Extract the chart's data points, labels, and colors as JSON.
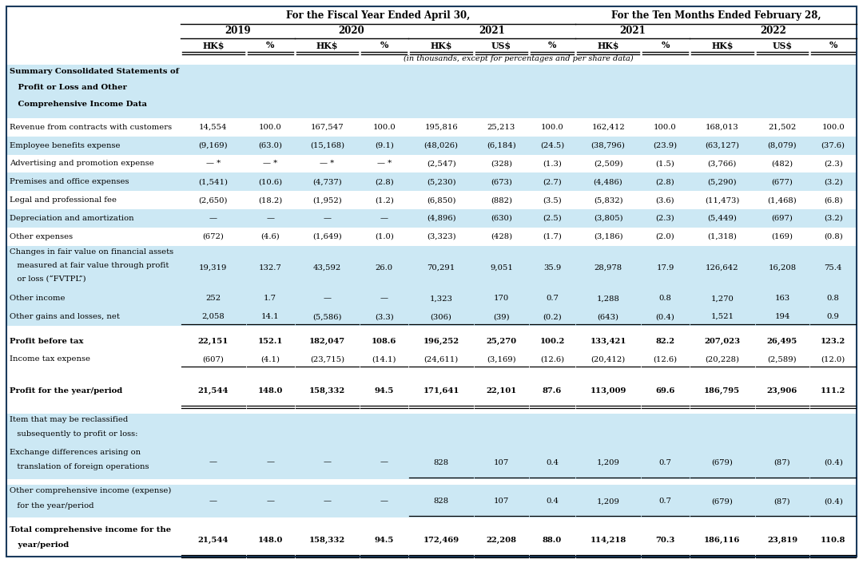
{
  "title_fiscal": "For the Fiscal Year Ended April 30,",
  "title_ten_months": "For the Ten Months Ended February 28,",
  "subtitle": "(in thousands, except for percentages and per share data)",
  "section_header_lines": [
    "Summary Consolidated Statements of",
    "   Profit or Loss and Other",
    "   Comprehensive Income Data"
  ],
  "bg_light": "#cce8f4",
  "bg_white": "#ffffff",
  "border_color": "#1a3a5c",
  "fig_w": 10.8,
  "fig_h": 7.05,
  "dpi": 100,
  "rows": [
    {
      "label_lines": [
        "Revenue from contracts with customers"
      ],
      "data": [
        "14,554",
        "100.0",
        "167,547",
        "100.0",
        "195,816",
        "25,213",
        "100.0",
        "162,412",
        "100.0",
        "168,013",
        "21,502",
        "100.0"
      ],
      "bold": false,
      "underline_single": false,
      "underline_double": false,
      "bg": "white",
      "spacer_before": false
    },
    {
      "label_lines": [
        "Employee benefits expense"
      ],
      "data": [
        "(9,169)",
        "(63.0)",
        "(15,168)",
        "(9.1)",
        "(48,026)",
        "(6,184)",
        "(24.5)",
        "(38,796)",
        "(23.9)",
        "(63,127)",
        "(8,079)",
        "(37.6)"
      ],
      "bold": false,
      "underline_single": false,
      "underline_double": false,
      "bg": "light",
      "spacer_before": false
    },
    {
      "label_lines": [
        "Advertising and promotion expense"
      ],
      "data": [
        "— *",
        "— *",
        "— *",
        "— *",
        "(2,547)",
        "(328)",
        "(1.3)",
        "(2,509)",
        "(1.5)",
        "(3,766)",
        "(482)",
        "(2.3)"
      ],
      "bold": false,
      "underline_single": false,
      "underline_double": false,
      "bg": "white",
      "spacer_before": false
    },
    {
      "label_lines": [
        "Premises and office expenses"
      ],
      "data": [
        "(1,541)",
        "(10.6)",
        "(4,737)",
        "(2.8)",
        "(5,230)",
        "(673)",
        "(2.7)",
        "(4,486)",
        "(2.8)",
        "(5,290)",
        "(677)",
        "(3.2)"
      ],
      "bold": false,
      "underline_single": false,
      "underline_double": false,
      "bg": "light",
      "spacer_before": false
    },
    {
      "label_lines": [
        "Legal and professional fee"
      ],
      "data": [
        "(2,650)",
        "(18.2)",
        "(1,952)",
        "(1.2)",
        "(6,850)",
        "(882)",
        "(3.5)",
        "(5,832)",
        "(3.6)",
        "(11,473)",
        "(1,468)",
        "(6.8)"
      ],
      "bold": false,
      "underline_single": false,
      "underline_double": false,
      "bg": "white",
      "spacer_before": false
    },
    {
      "label_lines": [
        "Depreciation and amortization"
      ],
      "data": [
        "—",
        "—",
        "—",
        "—",
        "(4,896)",
        "(630)",
        "(2.5)",
        "(3,805)",
        "(2.3)",
        "(5,449)",
        "(697)",
        "(3.2)"
      ],
      "bold": false,
      "underline_single": false,
      "underline_double": false,
      "bg": "light",
      "spacer_before": false
    },
    {
      "label_lines": [
        "Other expenses"
      ],
      "data": [
        "(672)",
        "(4.6)",
        "(1,649)",
        "(1.0)",
        "(3,323)",
        "(428)",
        "(1.7)",
        "(3,186)",
        "(2.0)",
        "(1,318)",
        "(169)",
        "(0.8)"
      ],
      "bold": false,
      "underline_single": false,
      "underline_double": false,
      "bg": "white",
      "spacer_before": false
    },
    {
      "label_lines": [
        "Changes in fair value on financial assets",
        "   measured at fair value through profit",
        "   or loss (“FVTPL”)"
      ],
      "data": [
        "19,319",
        "132.7",
        "43,592",
        "26.0",
        "70,291",
        "9,051",
        "35.9",
        "28,978",
        "17.9",
        "126,642",
        "16,208",
        "75.4"
      ],
      "bold": false,
      "underline_single": false,
      "underline_double": false,
      "bg": "light",
      "spacer_before": false
    },
    {
      "label_lines": [
        "Other income"
      ],
      "data": [
        "252",
        "1.7",
        "—",
        "—",
        "1,323",
        "170",
        "0.7",
        "1,288",
        "0.8",
        "1,270",
        "163",
        "0.8"
      ],
      "bold": false,
      "underline_single": false,
      "underline_double": false,
      "bg": "light",
      "spacer_before": false
    },
    {
      "label_lines": [
        "Other gains and losses, net"
      ],
      "data": [
        "2,058",
        "14.1",
        "(5,586)",
        "(3.3)",
        "(306)",
        "(39)",
        "(0.2)",
        "(643)",
        "(0.4)",
        "1,521",
        "194",
        "0.9"
      ],
      "bold": false,
      "underline_single": true,
      "underline_double": false,
      "bg": "light",
      "spacer_before": false
    },
    {
      "label_lines": [
        "Profit before tax"
      ],
      "data": [
        "22,151",
        "152.1",
        "182,047",
        "108.6",
        "196,252",
        "25,270",
        "100.2",
        "133,421",
        "82.2",
        "207,023",
        "26,495",
        "123.2"
      ],
      "bold": true,
      "underline_single": false,
      "underline_double": false,
      "bg": "white",
      "spacer_before": true
    },
    {
      "label_lines": [
        "Income tax expense"
      ],
      "data": [
        "(607)",
        "(4.1)",
        "(23,715)",
        "(14.1)",
        "(24,611)",
        "(3,169)",
        "(12.6)",
        "(20,412)",
        "(12.6)",
        "(20,228)",
        "(2,589)",
        "(12.0)"
      ],
      "bold": false,
      "underline_single": true,
      "underline_double": false,
      "bg": "white",
      "spacer_before": false
    },
    {
      "label_lines": [
        "Profit for the year/period"
      ],
      "data": [
        "21,544",
        "148.0",
        "158,332",
        "94.5",
        "171,641",
        "22,101",
        "87.6",
        "113,009",
        "69.6",
        "186,795",
        "23,906",
        "111.2"
      ],
      "bold": true,
      "underline_single": false,
      "underline_double": true,
      "bg": "white",
      "spacer_before": true
    },
    {
      "label_lines": [
        "Item that may be reclassified",
        "   subsequently to profit or loss:"
      ],
      "data": [
        "",
        "",
        "",
        "",
        "",
        "",
        "",
        "",
        "",
        "",
        "",
        ""
      ],
      "bold": false,
      "underline_single": false,
      "underline_double": false,
      "bg": "light",
      "spacer_before": true
    },
    {
      "label_lines": [
        "Exchange differences arising on",
        "   translation of foreign operations"
      ],
      "data": [
        "—",
        "—",
        "—",
        "—",
        "828",
        "107",
        "0.4",
        "1,209",
        "0.7",
        "(679)",
        "(87)",
        "(0.4)"
      ],
      "bold": false,
      "underline_single": true,
      "underline_double": false,
      "bg": "light",
      "spacer_before": false
    },
    {
      "label_lines": [
        "Other comprehensive income (expense)",
        "   for the year/period"
      ],
      "data": [
        "—",
        "—",
        "—",
        "—",
        "828",
        "107",
        "0.4",
        "1,209",
        "0.7",
        "(679)",
        "(87)",
        "(0.4)"
      ],
      "bold": false,
      "underline_single": true,
      "underline_double": false,
      "bg": "light",
      "spacer_before": true
    },
    {
      "label_lines": [
        "Total comprehensive income for the",
        "   year/period"
      ],
      "data": [
        "21,544",
        "148.0",
        "158,332",
        "94.5",
        "172,469",
        "22,208",
        "88.0",
        "114,218",
        "70.3",
        "186,116",
        "23,819",
        "110.8"
      ],
      "bold": true,
      "underline_single": false,
      "underline_double": true,
      "bg": "white",
      "spacer_before": true
    }
  ]
}
